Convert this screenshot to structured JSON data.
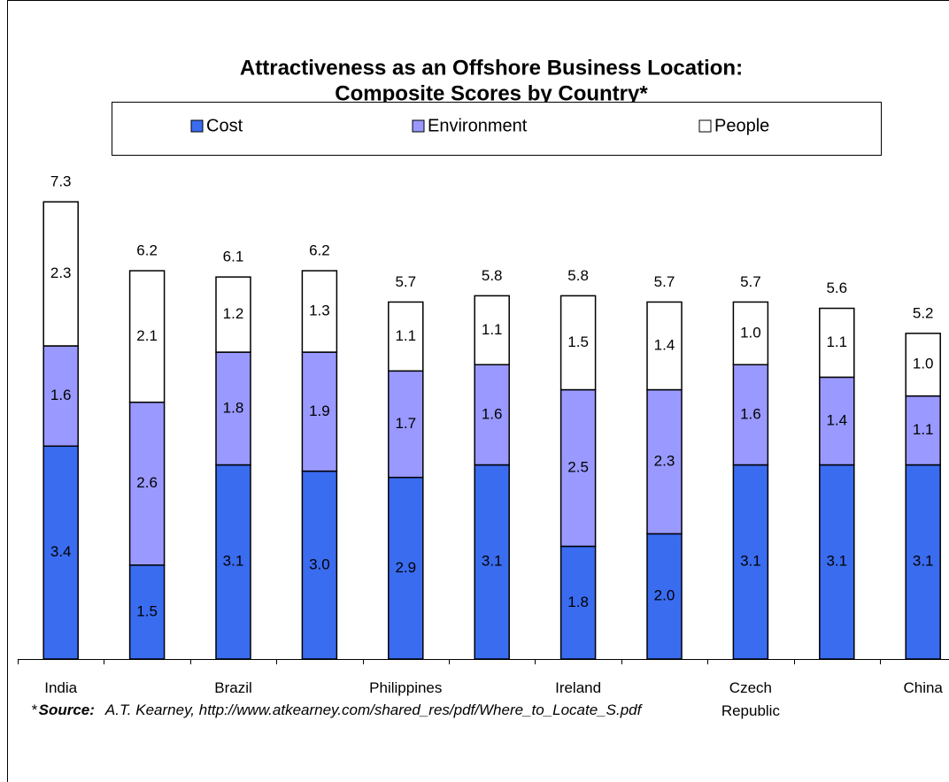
{
  "chart_data": {
    "type": "stacked_bar",
    "title": [
      "Attractiveness as an Offshore Business Location:",
      "Composite Scores by Country*"
    ],
    "categories": [
      "India",
      null,
      "Brazil",
      null,
      "Philippines",
      null,
      "Ireland",
      null,
      "Czech Republic",
      null,
      "China"
    ],
    "series": [
      {
        "name": "Cost",
        "color": "#3a6cf0",
        "values": [
          3.4,
          1.5,
          3.1,
          3.0,
          2.9,
          3.1,
          1.8,
          2.0,
          3.1,
          3.1,
          3.1
        ],
        "value_labels": [
          "3.4",
          "1.5",
          "3.1",
          "3.0",
          "2.9",
          "3.1",
          "1.8",
          "2.0",
          "3.1",
          "3.1",
          "3.1"
        ]
      },
      {
        "name": "Environment",
        "color": "#9999ff",
        "values": [
          1.6,
          2.6,
          1.8,
          1.9,
          1.7,
          1.6,
          2.5,
          2.3,
          1.6,
          1.4,
          1.1
        ],
        "value_labels": [
          "1.6",
          "2.6",
          "1.8",
          "1.9",
          "1.7",
          "1.6",
          "2.5",
          "2.3",
          "1.6",
          "1.4",
          "1.1"
        ]
      },
      {
        "name": "People",
        "color": "#ffffff",
        "values": [
          2.3,
          2.1,
          1.2,
          1.3,
          1.1,
          1.1,
          1.5,
          1.4,
          1.0,
          1.1,
          1.0
        ],
        "value_labels": [
          "2.3",
          "2.1",
          "1.2",
          "1.3",
          "1.1",
          "1.1",
          "1.5",
          "1.4",
          "1.0",
          "1.1",
          "1.0"
        ]
      }
    ],
    "totals": [
      7.3,
      6.2,
      6.1,
      6.2,
      5.7,
      5.8,
      5.8,
      5.7,
      5.7,
      5.6,
      5.2
    ],
    "legend": "top",
    "footnote": {
      "marker": "*",
      "label": "Source:",
      "text": "A.T. Kearney, http://www.atkearney.com/shared_res/pdf/Where_to_Locate_S.pdf"
    }
  }
}
